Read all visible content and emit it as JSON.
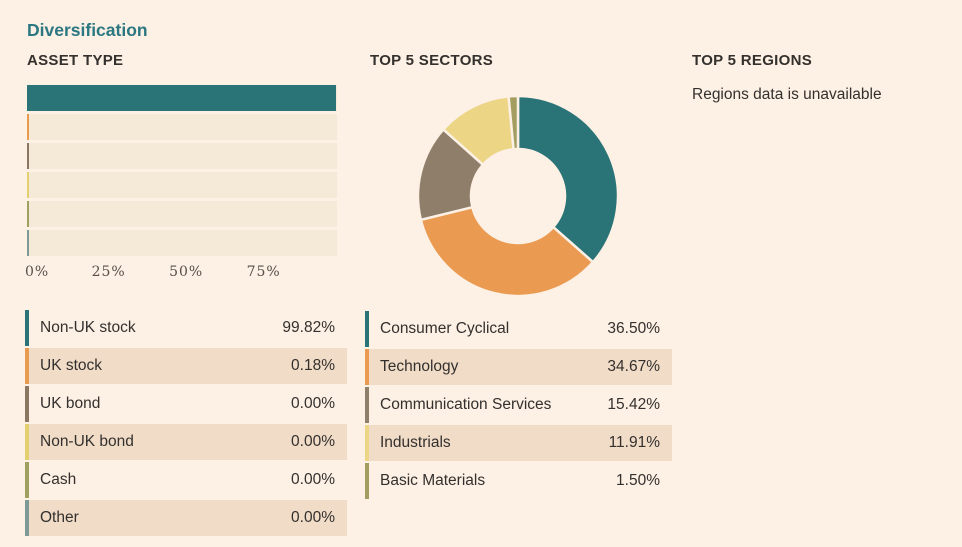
{
  "page": {
    "title": "Diversification",
    "background_color": "#fdf0e4",
    "title_color": "#2b7882",
    "shaded_row_color": "#f0dcc7",
    "empty_bar_color": "#f5ead8"
  },
  "asset_type": {
    "heading": "ASSET TYPE",
    "axis_ticks": [
      "0%",
      "25%",
      "50%",
      "75%"
    ],
    "rows": [
      {
        "label": "Non-UK stock",
        "value": "99.82%",
        "pct": 99.82,
        "color": "#2a7477"
      },
      {
        "label": "UK stock",
        "value": "0.18%",
        "pct": 0.18,
        "color": "#e89a4f"
      },
      {
        "label": "UK bond",
        "value": "0.00%",
        "pct": 0.0,
        "color": "#8a7661"
      },
      {
        "label": "Non-UK bond",
        "value": "0.00%",
        "pct": 0.0,
        "color": "#e3cf6d"
      },
      {
        "label": "Cash",
        "value": "0.00%",
        "pct": 0.0,
        "color": "#a0a060"
      },
      {
        "label": "Other",
        "value": "0.00%",
        "pct": 0.0,
        "color": "#7d9a97"
      }
    ]
  },
  "sectors": {
    "heading": "TOP 5 SECTORS",
    "rows": [
      {
        "label": "Consumer Cyclical",
        "value": "36.50%",
        "pct": 36.5,
        "color": "#2a7477"
      },
      {
        "label": "Technology",
        "value": "34.67%",
        "pct": 34.67,
        "color": "#eb9b51"
      },
      {
        "label": "Communication Services",
        "value": "15.42%",
        "pct": 15.42,
        "color": "#8f7e6a"
      },
      {
        "label": "Industrials",
        "value": "11.91%",
        "pct": 11.91,
        "color": "#ecd585"
      },
      {
        "label": "Basic Materials",
        "value": "1.50%",
        "pct": 1.5,
        "color": "#a39d62"
      }
    ]
  },
  "regions": {
    "heading": "TOP 5 REGIONS",
    "message": "Regions data is unavailable"
  },
  "chart_data": [
    {
      "type": "bar",
      "orientation": "horizontal",
      "title": "ASSET TYPE",
      "categories": [
        "Non-UK stock",
        "UK stock",
        "UK bond",
        "Non-UK bond",
        "Cash",
        "Other"
      ],
      "values": [
        99.82,
        0.18,
        0.0,
        0.0,
        0.0,
        0.0
      ],
      "value_labels": [
        "99.82%",
        "0.18%",
        "0.00%",
        "0.00%",
        "0.00%",
        "0.00%"
      ],
      "colors": [
        "#2a7477",
        "#e89a4f",
        "#8a7661",
        "#e3cf6d",
        "#a0a060",
        "#7d9a97"
      ],
      "xlim": [
        0,
        100
      ],
      "x_tick_labels": [
        "0%",
        "25%",
        "50%",
        "75%"
      ],
      "grid": false,
      "legend_position": "below"
    },
    {
      "type": "pie",
      "subtype": "donut",
      "title": "TOP 5 SECTORS",
      "categories": [
        "Consumer Cyclical",
        "Technology",
        "Communication Services",
        "Industrials",
        "Basic Materials"
      ],
      "values": [
        36.5,
        34.67,
        15.42,
        11.91,
        1.5
      ],
      "value_labels": [
        "36.50%",
        "34.67%",
        "15.42%",
        "11.91%",
        "1.50%"
      ],
      "colors": [
        "#2a7477",
        "#eb9b51",
        "#8f7e6a",
        "#ecd585",
        "#a39d62"
      ],
      "start_angle_deg": 0,
      "direction": "clockwise",
      "inner_radius_ratio": 0.47,
      "legend_position": "below"
    }
  ]
}
